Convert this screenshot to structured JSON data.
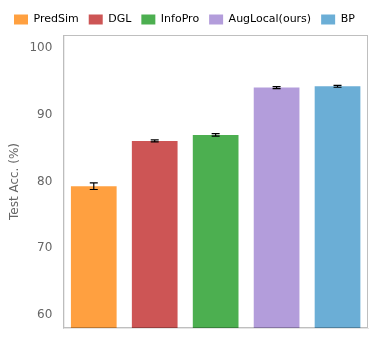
{
  "chart_data": {
    "type": "bar",
    "categories": [
      "PredSim",
      "DGL",
      "InfoPro",
      "AugLocal(ours)",
      "BP"
    ],
    "values": [
      79.3,
      86.1,
      87.0,
      94.1,
      94.3
    ],
    "errors": [
      0.5,
      0.15,
      0.2,
      0.15,
      0.15
    ],
    "colors": [
      "#FFA040",
      "#CD5555",
      "#4CAF50",
      "#B39DDB",
      "#6BAED6"
    ],
    "ylabel": "Test Acc. (%)",
    "ylim": [
      58,
      102
    ],
    "yticks": [
      60,
      70,
      80,
      90,
      100
    ],
    "grid": false,
    "legend": "upper left",
    "tick_labels": "y"
  }
}
